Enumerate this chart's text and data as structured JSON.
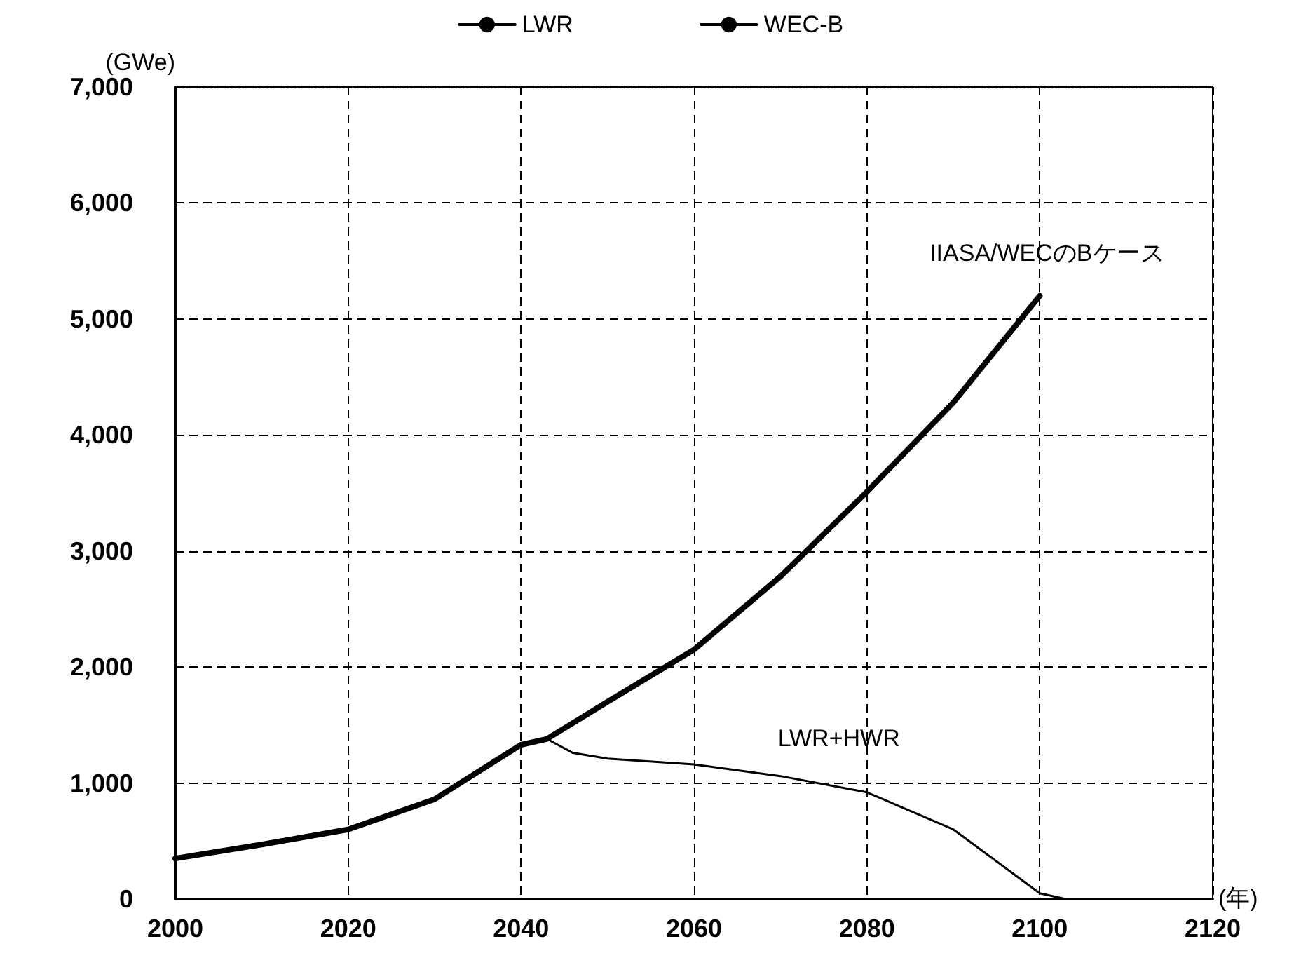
{
  "chart_data": {
    "type": "line",
    "xlabel": "(年)",
    "ylabel": "(GWe)",
    "xlim": [
      2000,
      2120
    ],
    "xticks": [
      2000,
      2020,
      2040,
      2060,
      2080,
      2100,
      2120
    ],
    "ylim": [
      0,
      7000
    ],
    "yticks": [
      0,
      {
        "value": 1000,
        "label": "1,000"
      },
      {
        "value": 2000,
        "label": "2,000"
      },
      {
        "value": 3000,
        "label": "3,000"
      },
      {
        "value": 4000,
        "label": "4,000"
      },
      {
        "value": 5000,
        "label": "5,000"
      },
      {
        "value": 6000,
        "label": "6,000"
      },
      {
        "value": 7000,
        "label": "7,000"
      }
    ],
    "grid": true,
    "legend": "top",
    "marker": "none",
    "line_style": "solid",
    "series": [
      {
        "name": "LWR",
        "color": "#000000",
        "x": [
          2000,
          2010,
          2020,
          2030,
          2040,
          2043,
          2046,
          2050,
          2060,
          2070,
          2080,
          2090,
          2100,
          2103
        ],
        "values": [
          350,
          470,
          600,
          860,
          1330,
          1380,
          1260,
          1210,
          1160,
          1060,
          920,
          600,
          50,
          0
        ]
      },
      {
        "name": "WEC-B",
        "color": "#000000",
        "x": [
          2000,
          2010,
          2020,
          2030,
          2040,
          2043,
          2050,
          2060,
          2070,
          2080,
          2090,
          2100
        ],
        "values": [
          350,
          470,
          600,
          860,
          1330,
          1380,
          1700,
          2150,
          2780,
          3510,
          4280,
          5200
        ]
      }
    ],
    "annotations": [
      {
        "text": "IIASA/WECのBケース",
        "x": 2100,
        "y": 5200
      },
      {
        "text": "LWR+HWR",
        "x": 2080,
        "y": 920
      }
    ]
  }
}
